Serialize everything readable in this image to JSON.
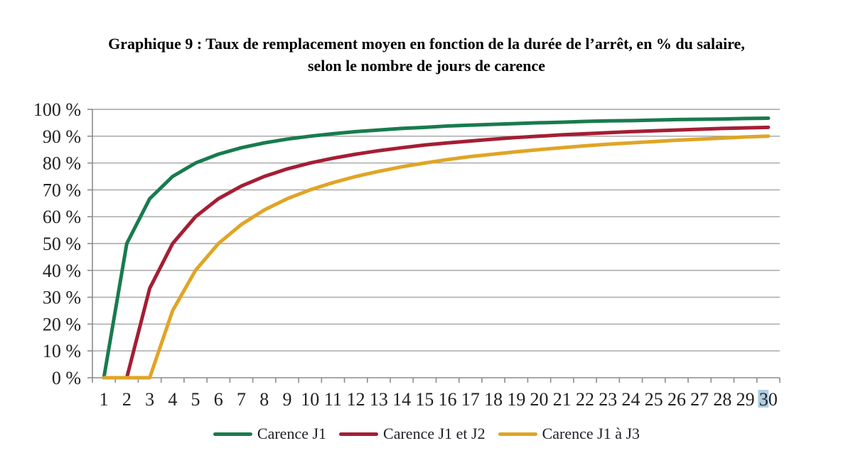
{
  "title": {
    "line1": "Graphique 9 : Taux de remplacement moyen en fonction de la durée de l’arrêt, en % du salaire,",
    "line2": "selon le nombre de jours de carence"
  },
  "chart_data": {
    "type": "line",
    "title": "Graphique 9 : Taux de remplacement moyen en fonction de la durée de l’arrêt, en % du salaire, selon le nombre de jours de carence",
    "xlabel": "",
    "ylabel": "",
    "x": [
      1,
      2,
      3,
      4,
      5,
      6,
      7,
      8,
      9,
      10,
      11,
      12,
      13,
      14,
      15,
      16,
      17,
      18,
      19,
      20,
      21,
      22,
      23,
      24,
      25,
      26,
      27,
      28,
      29,
      30
    ],
    "series": [
      {
        "name": "Carence J1",
        "color": "#187b4e",
        "values": [
          0,
          50,
          66.7,
          75,
          80,
          83.3,
          85.7,
          87.5,
          88.9,
          90,
          90.9,
          91.7,
          92.3,
          92.9,
          93.3,
          93.8,
          94.1,
          94.4,
          94.7,
          95,
          95.2,
          95.5,
          95.7,
          95.8,
          96,
          96.2,
          96.3,
          96.4,
          96.6,
          96.7
        ]
      },
      {
        "name": "Carence J1 et J2",
        "color": "#a41e35",
        "values": [
          0,
          0,
          33.3,
          50,
          60,
          66.7,
          71.4,
          75,
          77.8,
          80,
          81.8,
          83.3,
          84.6,
          85.7,
          86.7,
          87.5,
          88.2,
          88.9,
          89.5,
          90,
          90.5,
          90.9,
          91.3,
          91.7,
          92,
          92.3,
          92.6,
          92.9,
          93.1,
          93.3
        ]
      },
      {
        "name": "Carence J1 à J3",
        "color": "#e0a526",
        "values": [
          0,
          0,
          0,
          25,
          40,
          50,
          57.1,
          62.5,
          66.7,
          70,
          72.7,
          75,
          76.9,
          78.6,
          80,
          81.3,
          82.4,
          83.3,
          84.2,
          85,
          85.7,
          86.4,
          87,
          87.5,
          88,
          88.5,
          88.9,
          89.3,
          89.7,
          90
        ]
      }
    ],
    "ylim": [
      0,
      100
    ],
    "ytick_step": 10,
    "ytick_suffix": " %",
    "grid": "horizontal",
    "legend_position": "bottom",
    "grid_color": "#a3a3a3",
    "axis_color": "#8c8c8c",
    "tick_label_color": "#212121",
    "line_width": 5,
    "highlighted_tick": {
      "x_value": 30,
      "digit": "3",
      "color": "#aecde3"
    }
  }
}
